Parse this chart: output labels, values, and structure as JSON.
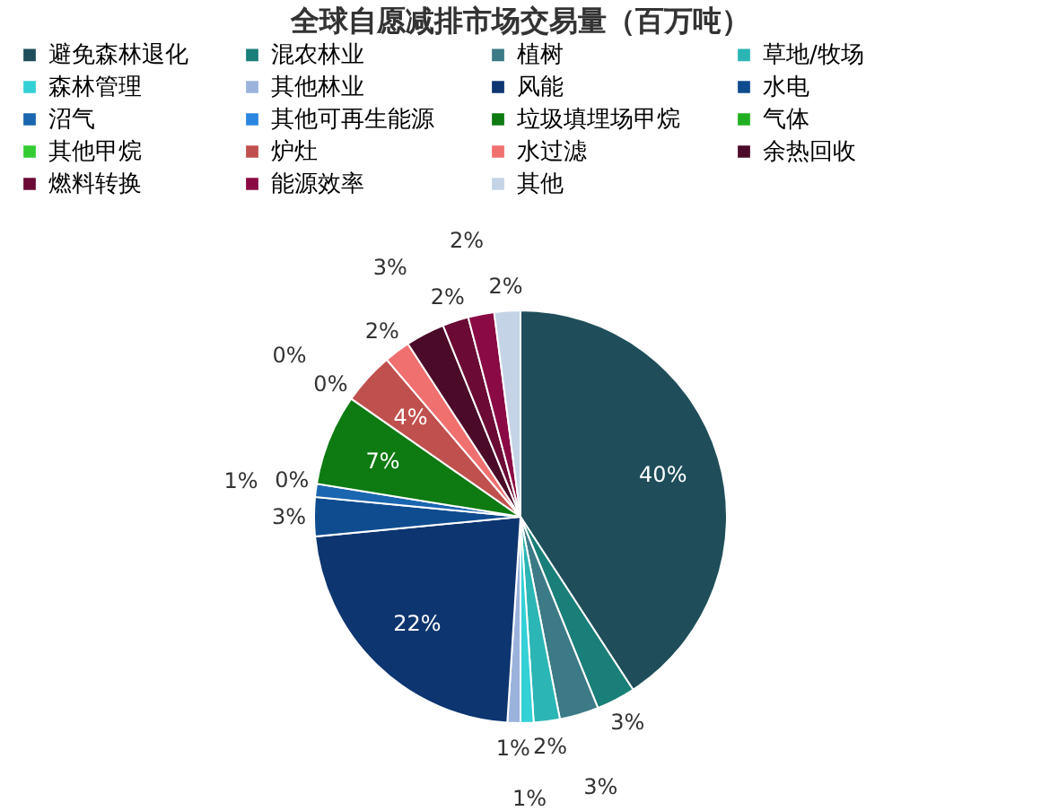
{
  "chart_data": {
    "type": "pie",
    "title": "全球自愿减排市场交易量（百万吨）",
    "categories": [
      "避免森林退化",
      "混农林业",
      "植树",
      "草地/牧场",
      "森林管理",
      "其他林业",
      "风能",
      "水电",
      "沼气",
      "其他可再生能源",
      "垃圾填埋场甲烷",
      "气体",
      "其他甲烷",
      "炉灶",
      "水过滤",
      "余热回收",
      "燃料转换",
      "能源效率",
      "其他"
    ],
    "values": [
      40,
      3,
      3,
      2,
      1,
      1,
      22,
      3,
      1,
      0,
      7,
      0,
      0,
      4,
      2,
      3,
      2,
      2,
      2
    ],
    "value_labels": [
      "40%",
      "3%",
      "3%",
      "2%",
      "1%",
      "1%",
      "22%",
      "3%",
      "1%",
      "0%",
      "7%",
      "0%",
      "0%",
      "4%",
      "2%",
      "3%",
      "2%",
      "2%",
      "2%"
    ],
    "colors": [
      "#1f4e5a",
      "#1a7f78",
      "#3b7a86",
      "#2bb5b5",
      "#33d0d6",
      "#9bb3dc",
      "#0d3570",
      "#0f4c8f",
      "#1a66b0",
      "#2a86e0",
      "#0d7a12",
      "#22b022",
      "#33cc33",
      "#c0504d",
      "#f07070",
      "#4a0a28",
      "#6a0a35",
      "#8a0a45",
      "#c4d4e6"
    ],
    "legend": "top"
  }
}
